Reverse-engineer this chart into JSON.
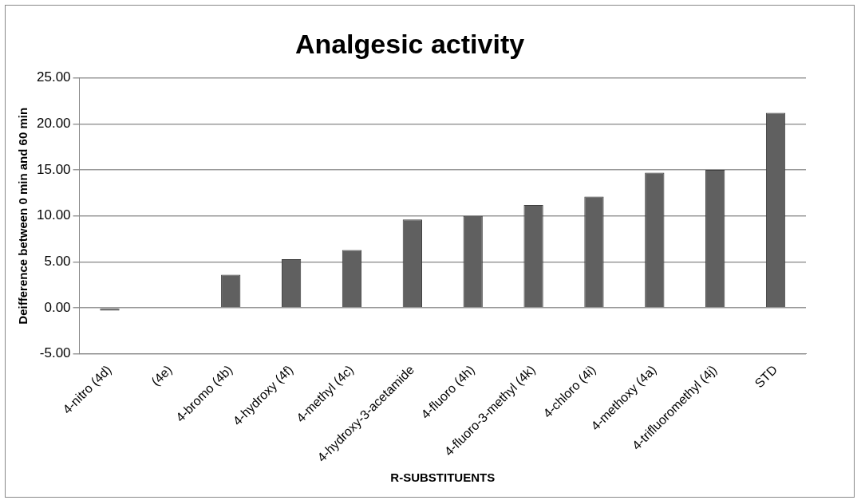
{
  "chart_data": {
    "type": "bar",
    "title": "Analgesic activity",
    "xlabel": "R-SUBSTITUENTS",
    "ylabel": "Deifference between 0 min and 60 min",
    "categories": [
      "4-nitro (4d)",
      "(4e)",
      "4-bromo (4b)",
      "4-hydroxy (4f)",
      "4-methyl (4c)",
      "4-hydroxy-3-acetamide",
      "4-fluoro (4h)",
      "4-fluoro-3-methyl (4k)",
      "4-chloro (4i)",
      "4-methoxy (4a)",
      "4-trifluoromethyl (4j)",
      "STD"
    ],
    "values": [
      -0.3,
      0,
      3.6,
      5.3,
      6.3,
      9.6,
      10,
      11.2,
      12.1,
      14.7,
      15,
      21.2
    ],
    "color": "#606060",
    "ylim": [
      -5,
      25
    ],
    "yticks": [
      {
        "value": -5,
        "label": "-5.00"
      },
      {
        "value": 0,
        "label": "0.00"
      },
      {
        "value": 5,
        "label": "5.00"
      },
      {
        "value": 10,
        "label": "10.00"
      },
      {
        "value": 15,
        "label": "15.00"
      },
      {
        "value": 20,
        "label": "20.00"
      },
      {
        "value": 25,
        "label": "25.00"
      }
    ],
    "grid": "y",
    "legend": false
  }
}
